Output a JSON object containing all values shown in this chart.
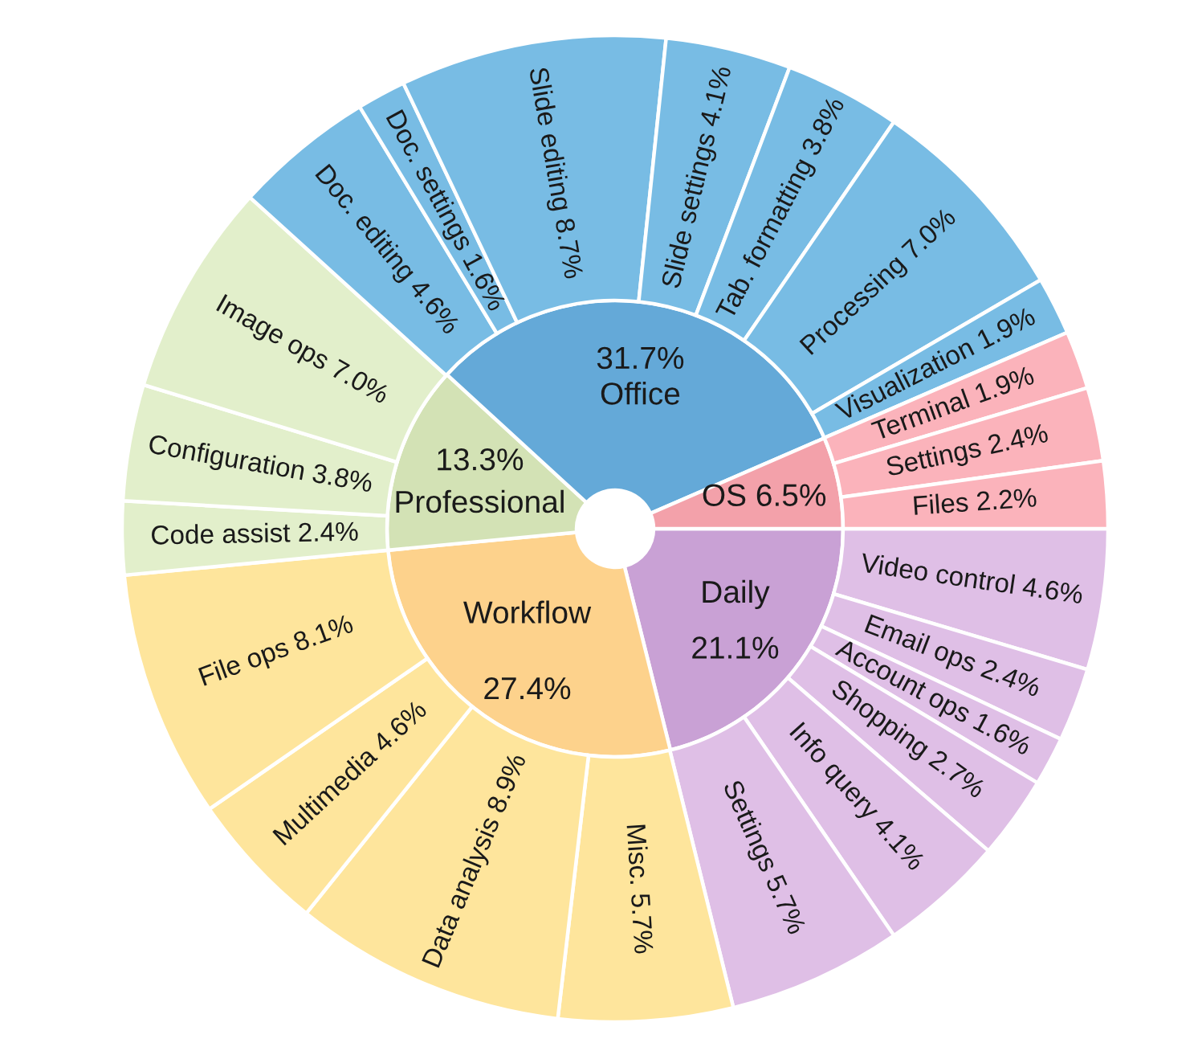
{
  "chart_data": {
    "type": "donut",
    "categories": [
      "Daily",
      "Workflow",
      "Professional",
      "Office",
      "OS",
      "Video control",
      "Email ops",
      "Account ops",
      "Shopping",
      "Info query",
      "Settings",
      "Misc.",
      "Data analysis",
      "Multimedia",
      "File ops",
      "Code assist",
      "Configuration",
      "Image ops",
      "Doc. editing",
      "Doc. settings",
      "Slide editing",
      "Slide settings",
      "Tab. formatting",
      "Processing",
      "Visualization",
      "Terminal",
      "Settings",
      "Files"
    ],
    "colors": [
      "#c9a1d5",
      "#fdd28c",
      "#d3e2b5",
      "#64a9d8",
      "#f3a1aa",
      "#dfbfe6",
      "#dfbfe6",
      "#dfbfe6",
      "#dfbfe6",
      "#dfbfe6",
      "#dfbfe6",
      "#fee59c",
      "#fee59c",
      "#fee59c",
      "#fee59c",
      "#e2efcb",
      "#e2efcb",
      "#e2efcb",
      "#78bce4",
      "#78bce4",
      "#78bce4",
      "#78bce4",
      "#78bce4",
      "#78bce4",
      "#78bce4",
      "#fbb3bb",
      "#fbb3bb",
      "#fbb3bb"
    ],
    "series": [
      {
        "values": [
          21.1,
          27.4,
          13.3,
          31.7,
          6.5,
          null,
          null,
          null,
          null,
          null,
          null,
          null,
          null,
          null,
          null,
          null,
          null,
          null,
          null,
          null,
          null,
          null,
          null,
          null,
          null,
          null,
          null,
          null
        ],
        "value_labels": [
          "21.1%",
          "27.4%",
          "13.3%",
          "31.7%",
          "6.5%",
          null,
          null,
          null,
          null,
          null,
          null,
          null,
          null,
          null,
          null,
          null,
          null,
          null,
          null,
          null,
          null,
          null,
          null,
          null,
          null,
          null,
          null,
          null
        ]
      },
      {
        "values": [
          null,
          null,
          null,
          null,
          null,
          4.6,
          2.4,
          1.6,
          2.7,
          4.1,
          5.7,
          5.7,
          8.9,
          4.6,
          8.1,
          2.4,
          3.8,
          7.0,
          4.6,
          1.6,
          8.7,
          4.1,
          3.8,
          7.0,
          1.9,
          1.9,
          2.4,
          2.2
        ],
        "value_labels": [
          null,
          null,
          null,
          null,
          null,
          "4.6%",
          "2.4%",
          "1.6%",
          "2.7%",
          "4.1%",
          "5.7%",
          "5.7%",
          "8.9%",
          "4.6%",
          "8.1%",
          "2.4%",
          "3.8%",
          "7.0%",
          "4.6%",
          "1.6%",
          "8.7%",
          "4.1%",
          "3.8%",
          "7.0%",
          "1.9%",
          "1.9%",
          "2.4%",
          "2.2%"
        ]
      }
    ]
  }
}
